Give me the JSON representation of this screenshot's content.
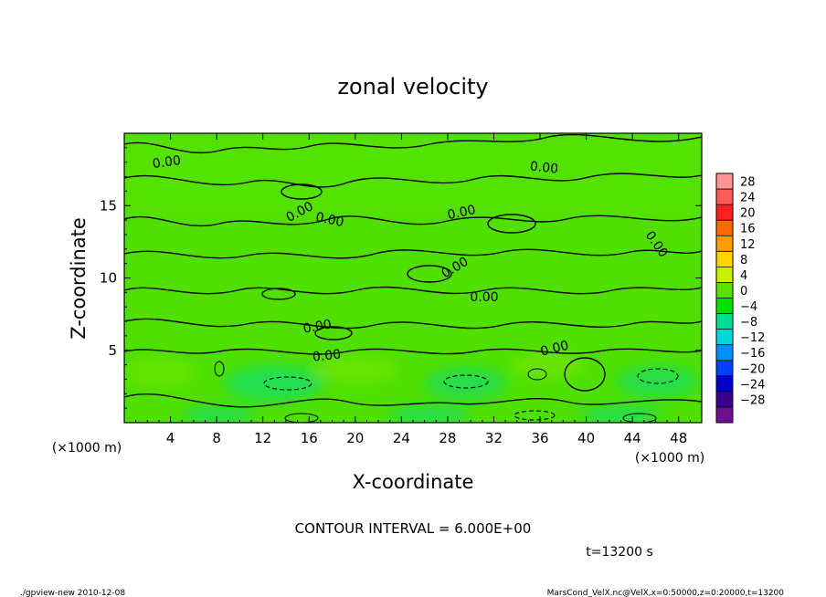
{
  "chart_data": {
    "type": "heatmap",
    "title": "zonal velocity",
    "xlabel": "X-coordinate",
    "ylabel": "Z-coordinate",
    "x_unit": "(×1000 m)",
    "y_unit": "(×1000 m)",
    "xlim": [
      0,
      50
    ],
    "ylim": [
      0,
      20
    ],
    "xticks": [
      4,
      8,
      12,
      16,
      20,
      24,
      28,
      32,
      36,
      40,
      44,
      48
    ],
    "xtick_labels": [
      "4",
      "8",
      "12",
      "16",
      "20",
      "24",
      "28",
      "32",
      "36",
      "40",
      "44",
      "48"
    ],
    "yticks": [
      5,
      10,
      15
    ],
    "ytick_labels": [
      "5",
      "10",
      "15"
    ],
    "colorbar": {
      "levels": [
        28,
        24,
        20,
        16,
        12,
        8,
        4,
        0,
        -4,
        -8,
        -12,
        -16,
        -20,
        -24,
        -28
      ],
      "labels": [
        "28",
        "24",
        "20",
        "16",
        "12",
        "8",
        "4",
        "0",
        "−4",
        "−8",
        "−12",
        "−16",
        "−20",
        "−24",
        "−28"
      ],
      "colors": [
        "#ff9494",
        "#ff5a5a",
        "#ff2020",
        "#ff6a00",
        "#ff9c00",
        "#ffd400",
        "#c8f000",
        "#5ce000",
        "#00e000",
        "#00dc90",
        "#00d8d8",
        "#0090ff",
        "#0040ff",
        "#0000c8",
        "#3a0090",
        "#6a1090"
      ]
    },
    "contour_labels": [
      "0.00",
      "0.00",
      "0.00",
      "0.00",
      "0.00",
      "0.00",
      "0.00",
      "0.00",
      "0.00",
      "0.00",
      "0.00"
    ],
    "contour_interval_text": "CONTOUR INTERVAL = 6.000E+00",
    "time_text": "t=13200  s"
  },
  "footer": {
    "left": "./gpview-new  2010-12-08",
    "right": "MarsCond_VelX.nc@VelX,x=0:50000,z=0:20000,t=13200"
  }
}
